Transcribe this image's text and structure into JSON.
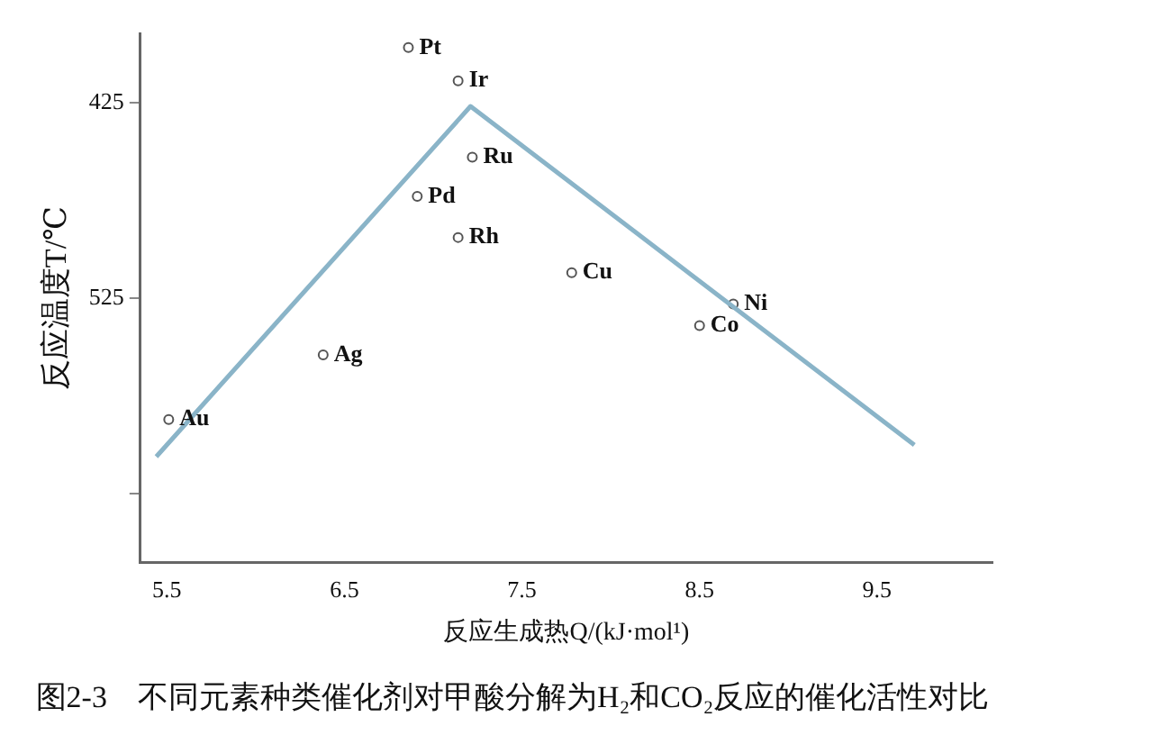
{
  "chart_data": {
    "type": "scatter",
    "title": "图2-3　不同元素种类催化剂对甲酸分解为H₂和CO₂反应的催化活性对比",
    "xlabel": "反应生成热Q/(kJ·mol¹)",
    "ylabel": "反应温度T/℃",
    "xlim": [
      5.35,
      10.15
    ],
    "xticks": [
      5.5,
      6.5,
      7.5,
      8.5,
      9.5
    ],
    "ylim": [
      660,
      390
    ],
    "yticks": [
      425,
      525,
      {
        "value": 625,
        "label": null
      }
    ],
    "grid": false,
    "legend": false,
    "marker": "circle",
    "series": [
      {
        "type": "line",
        "color": "#8ab4c8",
        "x": [
          5.44,
          7.21,
          9.71
        ],
        "values": [
          606,
          427,
          600
        ],
        "marker": "none"
      },
      {
        "color": "#555555",
        "x": [
          5.51,
          6.86,
          7.14,
          7.22,
          6.91,
          7.14,
          8.5,
          8.69,
          7.78,
          6.38
        ],
        "values": [
          587,
          397,
          414,
          453,
          473,
          494,
          539,
          528,
          512,
          554
        ]
      }
    ],
    "annotations": [
      {
        "text": "Au",
        "x": 5.51,
        "y": 587
      },
      {
        "text": "Pt",
        "x": 6.86,
        "y": 397
      },
      {
        "text": "Ir",
        "x": 7.14,
        "y": 414
      },
      {
        "text": "Ru",
        "x": 7.22,
        "y": 453
      },
      {
        "text": "Pd",
        "x": 6.91,
        "y": 473
      },
      {
        "text": "Rh",
        "x": 7.14,
        "y": 494
      },
      {
        "text": "Co",
        "x": 8.5,
        "y": 539
      },
      {
        "text": "Ni",
        "x": 8.69,
        "y": 528
      },
      {
        "text": "Cu",
        "x": 7.78,
        "y": 512
      },
      {
        "text": "Ag",
        "x": 6.38,
        "y": 554
      }
    ]
  }
}
